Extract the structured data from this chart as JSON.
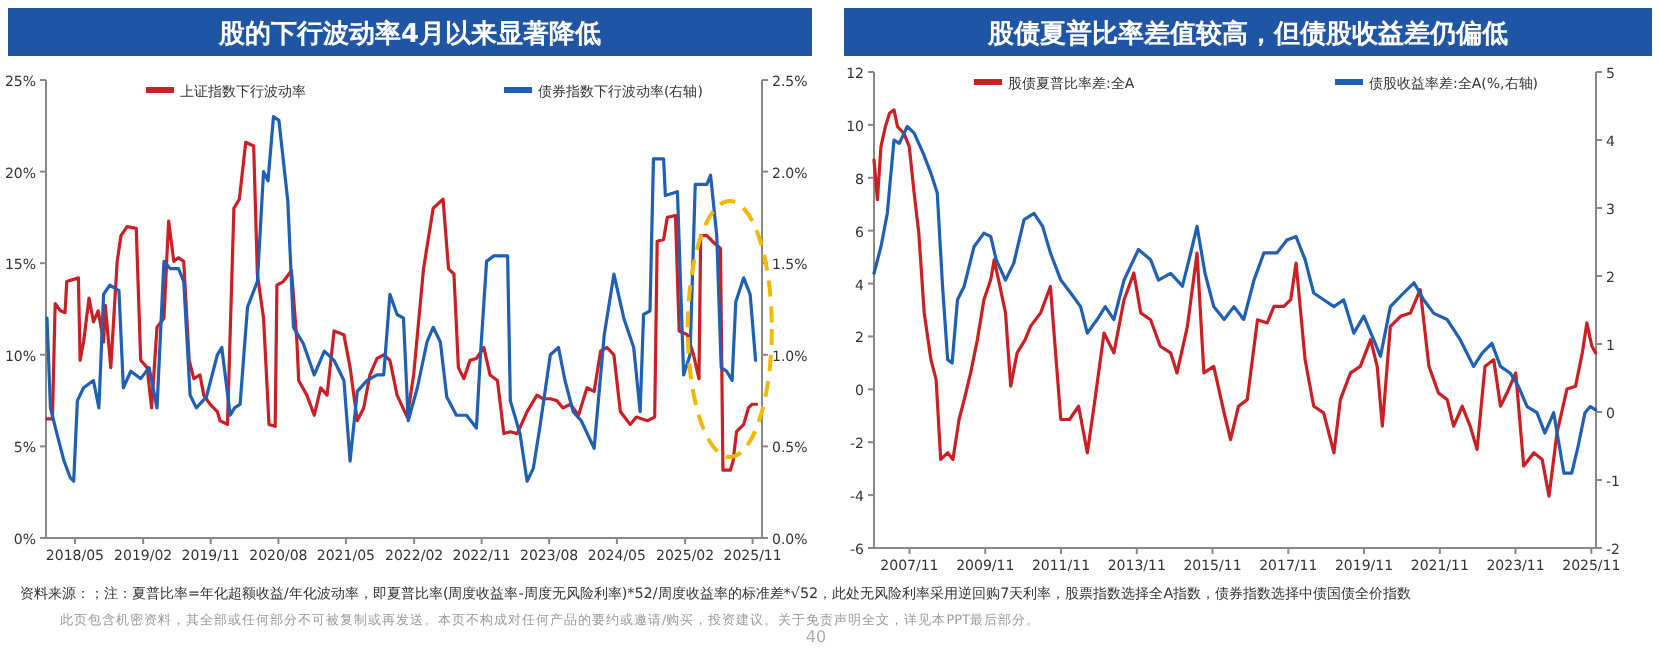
{
  "chart_data": [
    {
      "type": "line",
      "title": "股的下行波动率4月以来显著降低",
      "legend": "top",
      "grid": false,
      "marker": "none",
      "line_style": "solid",
      "xlim": [
        "2018-01-04",
        "2025-12-09"
      ],
      "xticks": [
        {
          "value": "2018-05",
          "label": "2018/05"
        },
        {
          "value": "2019-02",
          "label": "2019/02"
        },
        {
          "value": "2019-11",
          "label": "2019/11"
        },
        {
          "value": "2020-08",
          "label": "2020/08"
        },
        {
          "value": "2021-05",
          "label": "2021/05"
        },
        {
          "value": "2022-02",
          "label": "2022/02"
        },
        {
          "value": "2022-11",
          "label": "2022/11"
        },
        {
          "value": "2023-08",
          "label": "2023/08"
        },
        {
          "value": "2024-05",
          "label": "2024/05"
        },
        {
          "value": "2025-02",
          "label": "2025/02"
        },
        {
          "value": "2025-11",
          "label": "2025/11"
        }
      ],
      "ylim": [
        0,
        25
      ],
      "yticks": [
        {
          "value": 0,
          "label": "0%"
        },
        {
          "value": 5,
          "label": "5%"
        },
        {
          "value": 10,
          "label": "10%"
        },
        {
          "value": 15,
          "label": "15%"
        },
        {
          "value": 20,
          "label": "20%"
        },
        {
          "value": 25,
          "label": "25%"
        }
      ],
      "y2lim": [
        0,
        2.5
      ],
      "y2ticks": [
        {
          "value": 0,
          "label": "0.0%"
        },
        {
          "value": 0.5,
          "label": "0.5%"
        },
        {
          "value": 1,
          "label": "1.0%"
        },
        {
          "value": 1.5,
          "label": "1.5%"
        },
        {
          "value": 2,
          "label": "2.0%"
        },
        {
          "value": 2.5,
          "label": "2.5%"
        }
      ],
      "annotations": [
        "资料来源：；注：夏普比率=年化超额收益/年化波动率，即夏普比率(周度收益率-周度无风险利率)*52/周度收益率的标准差*√52，此处无风险利率采用逆回购7天利率，股票指数选择全A指数，债券指数选择中债国债全价指数",
        "此页包含机密资料，其全部或任何部分不可被复制或再发送。本页不构成对任何产品的要约或邀请/购买，投资建议。关于免责声明全文，详见本PPT最后部分。",
        "40"
      ],
      "series": [
        {
          "name": "上证指数下行波动率",
          "color": "#cc1f24",
          "x": [
            "2018-01-08",
            "2018-01-30",
            "2018-02-10",
            "2018-03-04",
            "2018-03-22",
            "2018-03-29",
            "2018-05-15",
            "2018-05-22",
            "2018-06-05",
            "2018-06-27",
            "2018-07-15",
            "2018-08-03",
            "2018-08-25",
            "2018-09-01",
            "2018-09-23",
            "2018-10-19",
            "2018-11-03",
            "2018-11-28",
            "2019-01-04",
            "2019-01-22",
            "2019-02-17",
            "2019-03-07",
            "2019-03-29",
            "2019-04-26",
            "2019-05-15",
            "2019-06-05",
            "2019-06-24",
            "2019-07-15",
            "2019-08-06",
            "2019-08-25",
            "2019-09-19",
            "2019-10-04",
            "2019-10-30",
            "2019-11-28",
            "2019-12-09",
            "2020-01-08",
            "2020-02-03",
            "2020-02-25",
            "2020-03-22",
            "2020-04-23",
            "2020-05-08",
            "2020-06-02",
            "2020-06-24",
            "2020-07-19",
            "2020-07-26",
            "2020-08-21",
            "2020-09-23",
            "2020-10-15",
            "2020-10-22",
            "2020-11-24",
            "2020-12-24",
            "2021-01-19",
            "2021-02-14",
            "2021-03-14",
            "2021-04-23",
            "2021-05-18",
            "2021-06-16",
            "2021-07-12",
            "2021-08-06",
            "2021-09-04",
            "2021-10-01",
            "2021-10-26",
            "2021-11-24",
            "2022-01-04",
            "2022-01-30",
            "2022-03-11",
            "2022-04-19",
            "2022-05-29",
            "2022-06-20",
            "2022-07-12",
            "2022-07-30",
            "2022-08-21",
            "2022-09-15",
            "2022-10-11",
            "2022-11-10",
            "2022-12-05",
            "2023-01-04",
            "2023-01-30",
            "2023-02-25",
            "2023-03-25",
            "2023-05-04",
            "2023-06-13",
            "2023-07-08",
            "2023-08-06",
            "2023-09-01",
            "2023-09-26",
            "2023-10-26",
            "2023-11-28",
            "2024-01-01",
            "2024-01-30",
            "2024-02-25",
            "2024-03-22",
            "2024-04-19",
            "2024-05-15",
            "2024-06-24",
            "2024-07-19",
            "2024-09-01",
            "2024-10-01",
            "2024-10-11",
            "2024-11-06",
            "2024-11-21",
            "2024-12-24",
            "2025-01-08",
            "2025-02-10",
            "2025-03-07",
            "2025-03-29",
            "2025-04-05",
            "2025-04-30",
            "2025-05-22",
            "2025-06-24",
            "2025-07-04",
            "2025-08-03",
            "2025-08-14",
            "2025-08-28",
            "2025-09-26",
            "2025-10-15",
            "2025-10-30",
            "2025-11-17"
          ],
          "values": [
            6.5,
            6.5,
            12.8,
            12.4,
            12.3,
            14.0,
            14.2,
            9.7,
            10.7,
            13.1,
            11.8,
            12.4,
            10.7,
            12.7,
            9.3,
            15.1,
            16.5,
            17.0,
            16.9,
            9.7,
            9.3,
            7.1,
            11.5,
            12.0,
            17.3,
            15.1,
            15.3,
            15.1,
            9.7,
            8.7,
            8.9,
            7.8,
            7.3,
            6.9,
            6.4,
            6.2,
            18.0,
            18.5,
            21.6,
            21.4,
            14.4,
            12.0,
            6.2,
            6.1,
            13.8,
            14.0,
            14.6,
            10.7,
            8.6,
            7.8,
            6.7,
            8.2,
            7.8,
            11.3,
            11.1,
            9.3,
            6.4,
            7.1,
            8.9,
            9.8,
            10.0,
            9.7,
            7.8,
            6.6,
            8.9,
            14.7,
            18.0,
            18.5,
            14.7,
            14.4,
            9.3,
            8.7,
            9.7,
            9.8,
            10.4,
            8.9,
            8.6,
            5.7,
            5.8,
            5.7,
            6.9,
            7.8,
            7.6,
            7.6,
            7.5,
            7.1,
            7.3,
            6.7,
            8.2,
            8.0,
            10.2,
            10.4,
            10.0,
            6.9,
            6.2,
            6.6,
            6.4,
            6.6,
            16.2,
            16.3,
            17.5,
            17.6,
            11.3,
            11.1,
            10.0,
            8.7,
            16.5,
            16.5,
            16.2,
            15.8,
            3.7,
            3.7,
            4.2,
            5.8,
            6.2,
            7.1,
            7.3,
            7.3
          ]
        },
        {
          "name": "债券指数下行波动率(右轴)",
          "color": "#1f5fb4",
          "axis": "y2",
          "x": [
            "2018-01-08",
            "2018-01-22",
            "2018-02-17",
            "2018-03-18",
            "2018-04-12",
            "2018-04-26",
            "2018-05-11",
            "2018-06-05",
            "2018-07-15",
            "2018-08-06",
            "2018-08-25",
            "2018-09-19",
            "2018-10-26",
            "2018-11-13",
            "2018-12-13",
            "2019-01-22",
            "2019-02-25",
            "2019-03-29",
            "2019-04-26",
            "2019-05-22",
            "2019-06-24",
            "2019-07-15",
            "2019-08-10",
            "2019-09-04",
            "2019-10-15",
            "2019-11-28",
            "2019-12-16",
            "2020-01-19",
            "2020-02-06",
            "2020-02-28",
            "2020-03-29",
            "2020-05-08",
            "2020-06-02",
            "2020-06-20",
            "2020-07-12",
            "2020-08-03",
            "2020-09-08",
            "2020-10-01",
            "2020-11-10",
            "2020-12-24",
            "2021-02-03",
            "2021-03-14",
            "2021-04-23",
            "2021-05-18",
            "2021-06-16",
            "2021-07-26",
            "2021-09-04",
            "2021-10-01",
            "2021-10-26",
            "2021-11-24",
            "2021-12-20",
            "2022-01-08",
            "2022-02-14",
            "2022-03-25",
            "2022-04-19",
            "2022-05-18",
            "2022-06-13",
            "2022-07-22",
            "2022-09-01",
            "2022-10-11",
            "2022-10-26",
            "2022-11-21",
            "2022-12-20",
            "2023-02-14",
            "2023-02-25",
            "2023-04-05",
            "2023-05-04",
            "2023-05-29",
            "2023-06-24",
            "2023-08-06",
            "2023-09-08",
            "2023-10-04",
            "2023-11-06",
            "2023-12-09",
            "2024-01-30",
            "2024-03-11",
            "2024-04-19",
            "2024-05-29",
            "2024-07-08",
            "2024-08-03",
            "2024-08-17",
            "2024-09-12",
            "2024-09-26",
            "2024-11-06",
            "2024-11-13",
            "2025-01-01",
            "2025-01-26",
            "2025-02-21",
            "2025-03-14",
            "2025-04-30",
            "2025-05-15",
            "2025-06-09",
            "2025-06-27",
            "2025-07-19",
            "2025-08-10",
            "2025-08-25",
            "2025-09-26",
            "2025-10-22",
            "2025-11-13"
          ],
          "values": [
            1.2,
            0.71,
            0.57,
            0.42,
            0.33,
            0.31,
            0.75,
            0.82,
            0.86,
            0.71,
            1.33,
            1.38,
            1.35,
            0.82,
            0.91,
            0.87,
            0.93,
            0.71,
            1.51,
            1.47,
            1.47,
            1.4,
            0.78,
            0.71,
            0.77,
            1.0,
            1.04,
            0.67,
            0.71,
            0.73,
            1.26,
            1.4,
            2.0,
            1.95,
            2.3,
            2.28,
            1.84,
            1.15,
            1.06,
            0.89,
            1.02,
            0.97,
            0.86,
            0.42,
            0.8,
            0.86,
            0.89,
            0.89,
            1.33,
            1.22,
            1.2,
            0.64,
            0.82,
            1.07,
            1.15,
            1.07,
            0.77,
            0.67,
            0.67,
            0.6,
            0.97,
            1.51,
            1.54,
            1.54,
            0.75,
            0.57,
            0.31,
            0.38,
            0.6,
            1.0,
            1.04,
            0.86,
            0.69,
            0.64,
            0.49,
            1.11,
            1.44,
            1.2,
            1.04,
            0.69,
            1.22,
            1.24,
            2.07,
            2.07,
            1.87,
            1.89,
            0.89,
            1.0,
            1.93,
            1.93,
            1.98,
            1.65,
            0.93,
            0.91,
            0.86,
            1.29,
            1.42,
            1.33,
            0.97
          ]
        }
      ]
    },
    {
      "type": "line",
      "title": "股债夏普比率差值较高，但债股收益差仍偏低",
      "legend": "top",
      "grid": false,
      "marker": "none",
      "line_style": "solid",
      "xlim": [
        "2006-11-24",
        "2025-12-16"
      ],
      "xticks": [
        {
          "value": "2007-11",
          "label": "2007/11"
        },
        {
          "value": "2009-11",
          "label": "2009/11"
        },
        {
          "value": "2011-11",
          "label": "2011/11"
        },
        {
          "value": "2013-11",
          "label": "2013/11"
        },
        {
          "value": "2015-11",
          "label": "2015/11"
        },
        {
          "value": "2017-11",
          "label": "2017/11"
        },
        {
          "value": "2019-11",
          "label": "2019/11"
        },
        {
          "value": "2021-11",
          "label": "2021/11"
        },
        {
          "value": "2023-11",
          "label": "2023/11"
        },
        {
          "value": "2025-11",
          "label": "2025/11"
        }
      ],
      "ylim": [
        -6,
        12
      ],
      "yticks": [
        -6,
        -4,
        -2,
        0,
        2,
        4,
        6,
        8,
        10,
        12
      ],
      "y2lim": [
        -2,
        5
      ],
      "y2ticks": [
        -2,
        -1,
        0,
        1,
        2,
        3,
        4,
        5
      ],
      "series": [
        {
          "name": "股债夏普比率差:全A",
          "color": "#cc1f24",
          "x": [
            "2006-11-24",
            "2006-12-27",
            "2007-01-30",
            "2007-03-14",
            "2007-04-23",
            "2007-06-05",
            "2007-07-08",
            "2007-09-08",
            "2007-10-30",
            "2007-12-16",
            "2008-01-30",
            "2008-03-22",
            "2008-05-26",
            "2008-07-15",
            "2008-08-28",
            "2008-11-03",
            "2008-12-24",
            "2009-02-21",
            "2009-04-12",
            "2009-06-13",
            "2009-08-17",
            "2009-10-19",
            "2009-12-24",
            "2010-01-26",
            "2010-03-29",
            "2010-05-15",
            "2010-07-04",
            "2010-09-04",
            "2010-11-21",
            "2011-01-11",
            "2011-04-19",
            "2011-07-22",
            "2011-10-30",
            "2012-01-22",
            "2012-04-19",
            "2012-07-12",
            "2012-09-15",
            "2012-12-20",
            "2013-03-25",
            "2013-07-01",
            "2013-10-04",
            "2013-12-09",
            "2014-03-14",
            "2014-06-16",
            "2014-09-23",
            "2014-11-24",
            "2015-03-04",
            "2015-06-05",
            "2015-08-10",
            "2015-11-13",
            "2016-02-21",
            "2016-04-23",
            "2016-07-08",
            "2016-10-01",
            "2017-01-08",
            "2017-04-12",
            "2017-06-16",
            "2017-09-19",
            "2017-11-24",
            "2018-01-15",
            "2018-04-12",
            "2018-07-04",
            "2018-10-08",
            "2019-01-15",
            "2019-03-18",
            "2019-06-24",
            "2019-09-26",
            "2020-01-04",
            "2020-03-07",
            "2020-04-26",
            "2020-07-12",
            "2020-10-19",
            "2021-01-22",
            "2021-04-26",
            "2021-07-19",
            "2021-10-19",
            "2022-01-11",
            "2022-03-14",
            "2022-06-05",
            "2022-08-21",
            "2022-10-26",
            "2023-01-11",
            "2023-04-05",
            "2023-06-09",
            "2023-08-10",
            "2023-11-03",
            "2024-01-19",
            "2024-04-26",
            "2024-07-15",
            "2024-09-19",
            "2024-12-05",
            "2025-03-11",
            "2025-06-02",
            "2025-08-06",
            "2025-09-19",
            "2025-11-06",
            "2025-12-13"
          ],
          "values": [
            8.68,
            7.17,
            9.18,
            9.94,
            10.44,
            10.57,
            9.94,
            9.68,
            9.18,
            7.42,
            5.91,
            2.89,
            1.12,
            0.37,
            -2.65,
            -2.4,
            -2.65,
            -1.14,
            -0.39,
            0.62,
            1.88,
            3.39,
            4.15,
            4.9,
            3.77,
            2.89,
            0.12,
            1.38,
            1.88,
            2.38,
            2.89,
            3.89,
            -1.14,
            -1.14,
            -0.64,
            -2.4,
            -0.64,
            2.13,
            1.38,
            3.39,
            4.4,
            2.89,
            2.63,
            1.63,
            1.38,
            0.62,
            2.38,
            5.15,
            0.62,
            0.87,
            -0.89,
            -1.9,
            -0.64,
            -0.39,
            2.63,
            2.51,
            3.14,
            3.14,
            3.39,
            4.77,
            1.12,
            -0.64,
            -0.89,
            -2.4,
            -0.39,
            0.62,
            0.87,
            1.88,
            0.87,
            -1.39,
            2.38,
            2.76,
            2.89,
            3.77,
            0.87,
            -0.14,
            -0.39,
            -1.39,
            -0.64,
            -1.39,
            -2.27,
            0.87,
            1.12,
            -0.64,
            -0.14,
            0.62,
            -2.9,
            -2.4,
            -2.65,
            -4.04,
            -1.64,
            0.01,
            0.12,
            1.38,
            2.51,
            1.63,
            1.38
          ]
        },
        {
          "name": "债股收益率差:全A(%,右轴)",
          "color": "#1f5fb4",
          "axis": "y2",
          "x": [
            "2006-11-24",
            "2007-01-30",
            "2007-04-01",
            "2007-06-05",
            "2007-07-26",
            "2007-10-11",
            "2007-12-16",
            "2008-03-11",
            "2008-05-26",
            "2008-07-26",
            "2008-09-15",
            "2008-11-03",
            "2008-12-16",
            "2009-02-06",
            "2009-04-12",
            "2009-07-15",
            "2009-10-19",
            "2009-12-24",
            "2010-02-14",
            "2010-05-15",
            "2010-08-03",
            "2010-11-10",
            "2011-02-14",
            "2011-05-08",
            "2011-07-22",
            "2011-10-30",
            "2012-02-03",
            "2012-05-08",
            "2012-07-12",
            "2012-10-15",
            "2013-01-01",
            "2013-03-25",
            "2013-07-01",
            "2013-11-17",
            "2014-03-14",
            "2014-05-29",
            "2014-09-23",
            "2015-01-15",
            "2015-04-05",
            "2015-06-05",
            "2015-08-21",
            "2015-11-13",
            "2016-02-21",
            "2016-05-26",
            "2016-08-28",
            "2016-12-05",
            "2017-03-11",
            "2017-07-15",
            "2017-10-19",
            "2018-01-15",
            "2018-04-12",
            "2018-07-04",
            "2018-10-08",
            "2019-01-15",
            "2019-04-19",
            "2019-07-26",
            "2019-10-30",
            "2020-02-03",
            "2020-04-08",
            "2020-07-12",
            "2020-11-17",
            "2021-02-25",
            "2021-05-29",
            "2021-09-04",
            "2022-01-11",
            "2022-05-18",
            "2022-09-23",
            "2022-12-16",
            "2023-03-18",
            "2023-06-09",
            "2023-09-12",
            "2023-11-28",
            "2024-02-21",
            "2024-05-26",
            "2024-08-10",
            "2024-11-03",
            "2025-02-10",
            "2025-04-26",
            "2025-06-27",
            "2025-09-01",
            "2025-10-22",
            "2025-12-13"
          ],
          "values": [
            2.04,
            2.43,
            2.92,
            4.0,
            3.95,
            4.2,
            4.1,
            3.81,
            3.51,
            3.22,
            1.85,
            0.77,
            0.72,
            1.65,
            1.85,
            2.43,
            2.63,
            2.58,
            2.24,
            1.94,
            2.19,
            2.83,
            2.92,
            2.73,
            2.34,
            1.94,
            1.75,
            1.55,
            1.16,
            1.36,
            1.55,
            1.36,
            1.94,
            2.39,
            2.24,
            1.94,
            2.04,
            1.85,
            2.34,
            2.73,
            2.04,
            1.55,
            1.36,
            1.55,
            1.36,
            1.94,
            2.34,
            2.34,
            2.53,
            2.58,
            2.24,
            1.75,
            1.65,
            1.55,
            1.65,
            1.16,
            1.41,
            1.06,
            0.82,
            1.55,
            1.75,
            1.9,
            1.65,
            1.45,
            1.36,
            1.06,
            0.67,
            0.87,
            1.01,
            0.67,
            0.57,
            0.38,
            0.08,
            -0.01,
            -0.31,
            -0.01,
            -0.9,
            -0.9,
            -0.5,
            -0.01,
            0.08,
            0.03
          ]
        }
      ]
    }
  ]
}
